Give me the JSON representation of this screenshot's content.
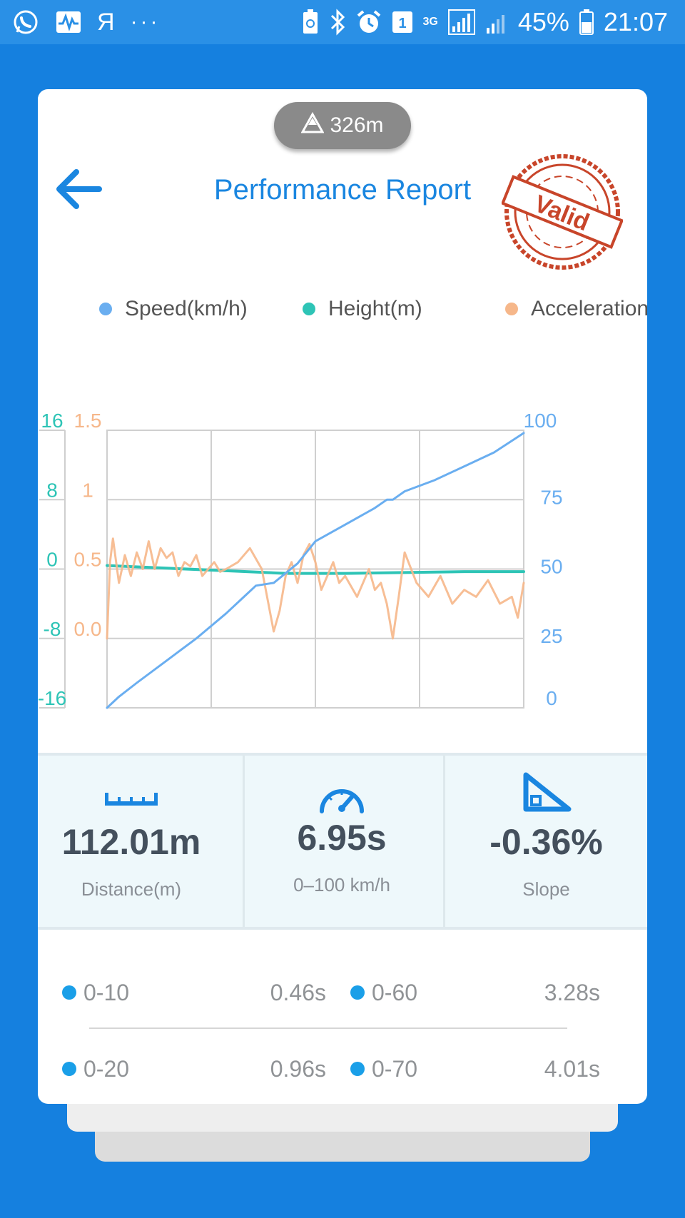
{
  "status_bar": {
    "keyboard_letter": "Я",
    "more_dots": "···",
    "sim_badge": "1",
    "network_type": "3G",
    "battery": "45%",
    "time": "21:07"
  },
  "header": {
    "altitude": "326m",
    "title": "Performance Report",
    "stamp_text": "Valid"
  },
  "legend": [
    {
      "label": "Speed(km/h)",
      "color": "#6aaef0"
    },
    {
      "label": "Height(m)",
      "color": "#2ec4b6"
    },
    {
      "label": "Acceleration(g)",
      "color": "#f6b78a"
    }
  ],
  "chart_data": {
    "type": "line",
    "axes": {
      "height_ticks": [
        "16",
        "8",
        "0",
        "-8",
        "-16"
      ],
      "accel_ticks": [
        "1.5",
        "1",
        "0.5",
        "0.0"
      ],
      "speed_ticks": [
        "100",
        "75",
        "50",
        "25",
        "0"
      ],
      "height_range": [
        -16,
        16
      ],
      "accel_range": [
        -0.5,
        1.5
      ],
      "speed_range": [
        0,
        100
      ],
      "time_range_s": [
        0,
        7
      ],
      "grid": true
    },
    "series": [
      {
        "name": "Speed(km/h)",
        "color": "#6aaef0",
        "t": [
          0,
          0.2,
          0.5,
          1.0,
          1.5,
          2.0,
          2.3,
          2.5,
          2.8,
          3.2,
          3.5,
          4.0,
          4.5,
          4.7,
          4.8,
          5.0,
          5.5,
          6.0,
          6.5,
          7.0
        ],
        "y": [
          0,
          4,
          9,
          17,
          25,
          34,
          40,
          44,
          45,
          52,
          60,
          66,
          72,
          75,
          75,
          78,
          82,
          87,
          92,
          99
        ]
      },
      {
        "name": "Height(m)",
        "color": "#2ec4b6",
        "t": [
          0,
          1,
          2,
          3,
          4,
          5,
          6,
          7
        ],
        "y": [
          0.4,
          0.1,
          -0.2,
          -0.5,
          -0.5,
          -0.4,
          -0.3,
          -0.3
        ]
      },
      {
        "name": "Acceleration(g)",
        "color": "#f6b78a",
        "t": [
          0,
          0.05,
          0.1,
          0.2,
          0.3,
          0.4,
          0.5,
          0.6,
          0.7,
          0.8,
          0.9,
          1.0,
          1.1,
          1.2,
          1.3,
          1.4,
          1.5,
          1.6,
          1.7,
          1.8,
          1.9,
          2.0,
          2.2,
          2.4,
          2.6,
          2.8,
          2.9,
          3.0,
          3.1,
          3.2,
          3.3,
          3.4,
          3.5,
          3.6,
          3.7,
          3.8,
          3.9,
          4.0,
          4.2,
          4.4,
          4.5,
          4.6,
          4.7,
          4.8,
          4.9,
          5.0,
          5.2,
          5.4,
          5.6,
          5.8,
          6.0,
          6.2,
          6.4,
          6.6,
          6.8,
          6.9,
          7.0
        ],
        "y": [
          0.0,
          0.55,
          0.72,
          0.4,
          0.6,
          0.45,
          0.62,
          0.5,
          0.7,
          0.5,
          0.65,
          0.58,
          0.62,
          0.45,
          0.55,
          0.52,
          0.6,
          0.45,
          0.5,
          0.55,
          0.48,
          0.5,
          0.55,
          0.65,
          0.5,
          0.05,
          0.2,
          0.45,
          0.55,
          0.4,
          0.6,
          0.68,
          0.55,
          0.35,
          0.45,
          0.55,
          0.4,
          0.45,
          0.3,
          0.5,
          0.35,
          0.4,
          0.25,
          0.0,
          0.3,
          0.62,
          0.4,
          0.3,
          0.45,
          0.25,
          0.35,
          0.3,
          0.42,
          0.25,
          0.3,
          0.15,
          0.4
        ]
      }
    ]
  },
  "stats": [
    {
      "value": "112.01m",
      "label": "Distance(m)"
    },
    {
      "value": "6.95s",
      "label": "0–100 km/h"
    },
    {
      "value": "-0.36%",
      "label": "Slope"
    }
  ],
  "splits": [
    {
      "label": "0-10",
      "value": "0.46s"
    },
    {
      "label": "0-60",
      "value": "3.28s"
    },
    {
      "label": "0-20",
      "value": "0.96s"
    },
    {
      "label": "0-70",
      "value": "4.01s"
    }
  ]
}
